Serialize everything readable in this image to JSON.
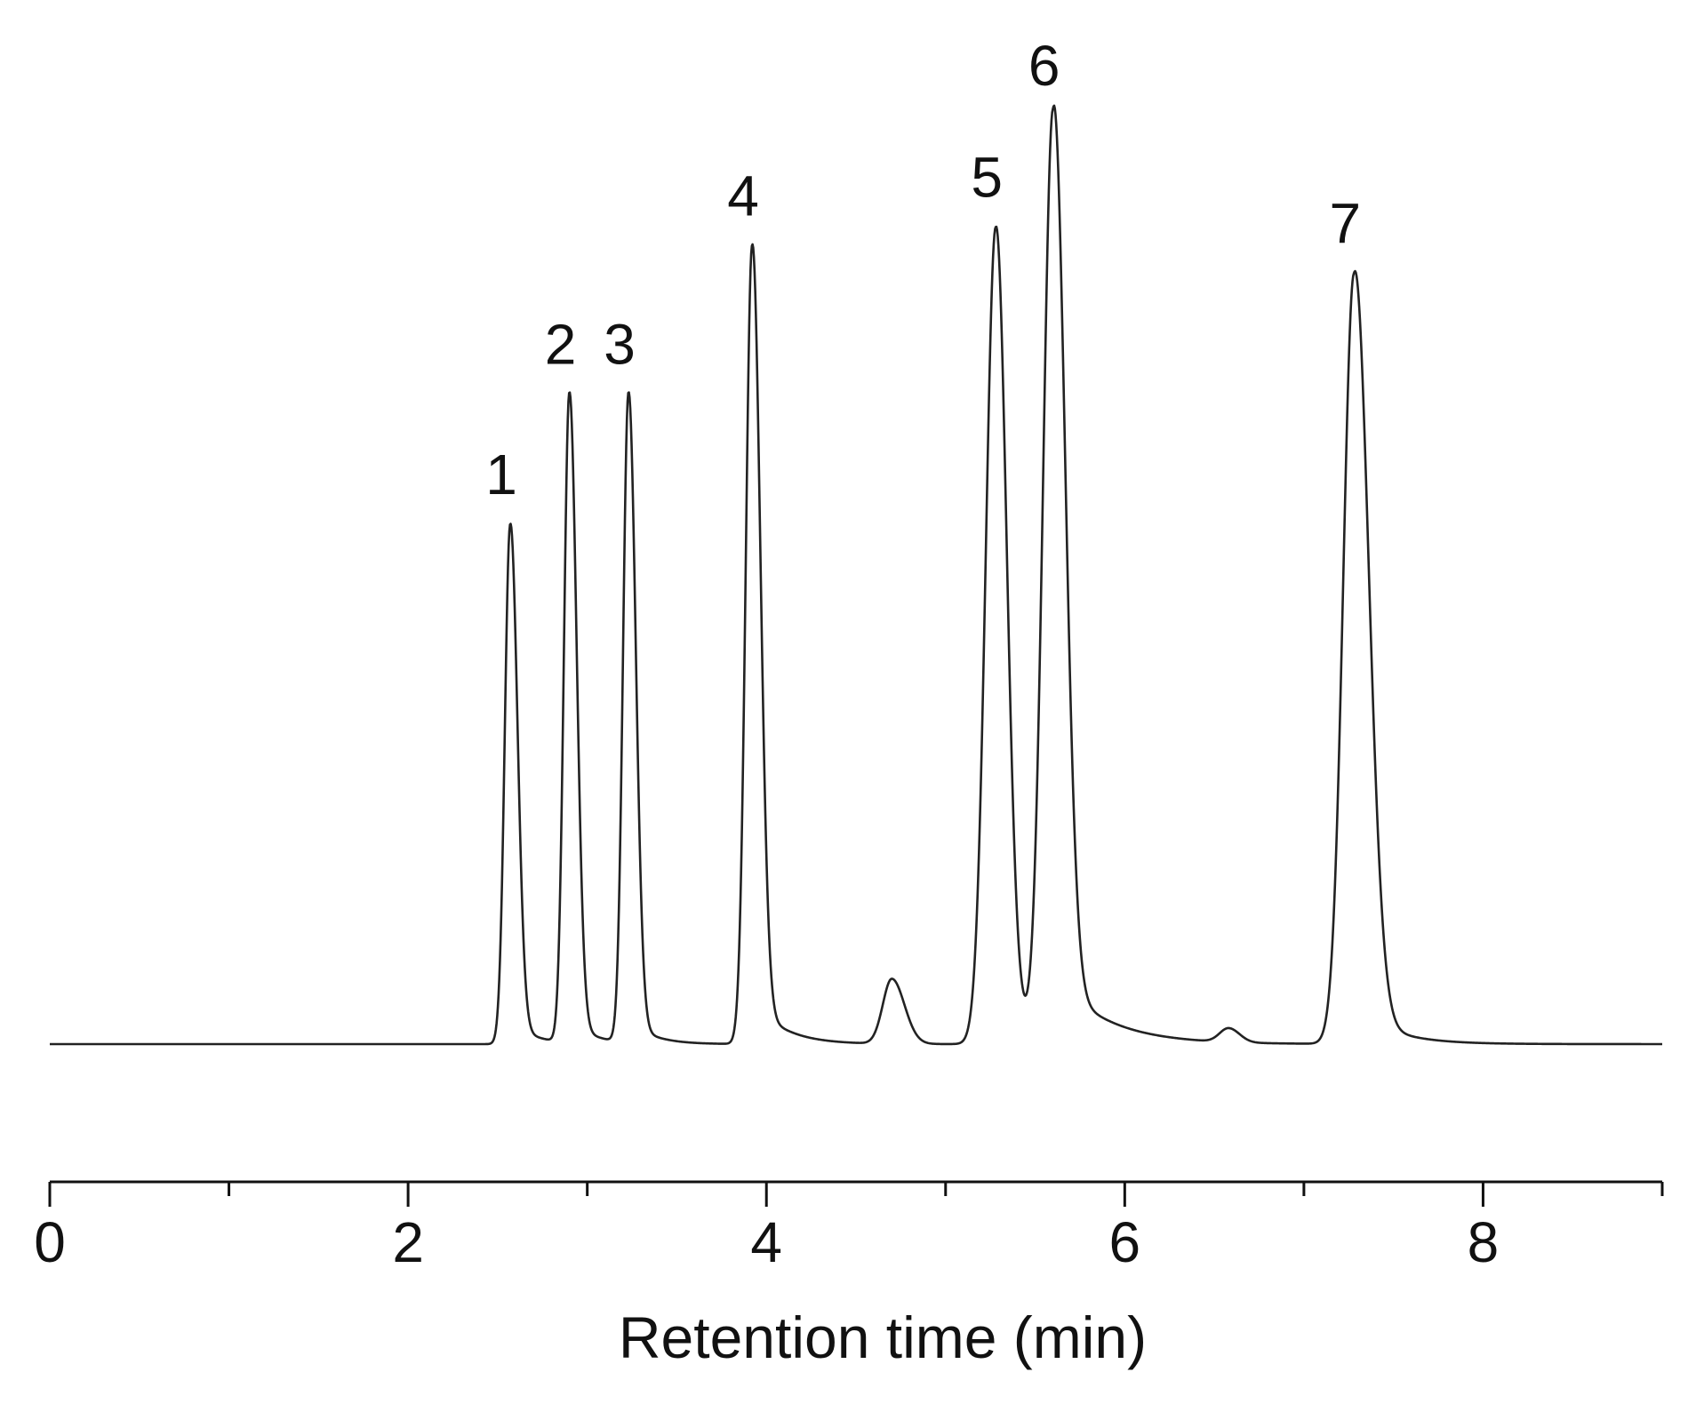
{
  "chart_data": {
    "type": "line",
    "title": "",
    "xlabel": "Retention time (min)",
    "ylabel": "",
    "xlim": [
      0,
      9
    ],
    "ylim": [
      0,
      1
    ],
    "grid": false,
    "legend": "none",
    "x_ticks_major": [
      0,
      2,
      4,
      6,
      8
    ],
    "x_tick_labels": [
      "0",
      "2",
      "4",
      "6",
      "8"
    ],
    "x_ticks_minor": [
      1,
      3,
      5,
      7,
      9
    ],
    "line_color": "#222222",
    "peaks": [
      {
        "label": "1",
        "time": 2.57,
        "height": 0.56
      },
      {
        "label": "2",
        "time": 2.9,
        "height": 0.7
      },
      {
        "label": "3",
        "time": 3.23,
        "height": 0.7
      },
      {
        "label": "4",
        "time": 3.92,
        "height": 0.86
      },
      {
        "label": "",
        "time": 4.7,
        "height": 0.07
      },
      {
        "label": "5",
        "time": 5.28,
        "height": 0.88
      },
      {
        "label": "6",
        "time": 5.6,
        "height": 1.0
      },
      {
        "label": "",
        "time": 6.58,
        "height": 0.015
      },
      {
        "label": "7",
        "time": 7.28,
        "height": 0.83
      }
    ]
  }
}
